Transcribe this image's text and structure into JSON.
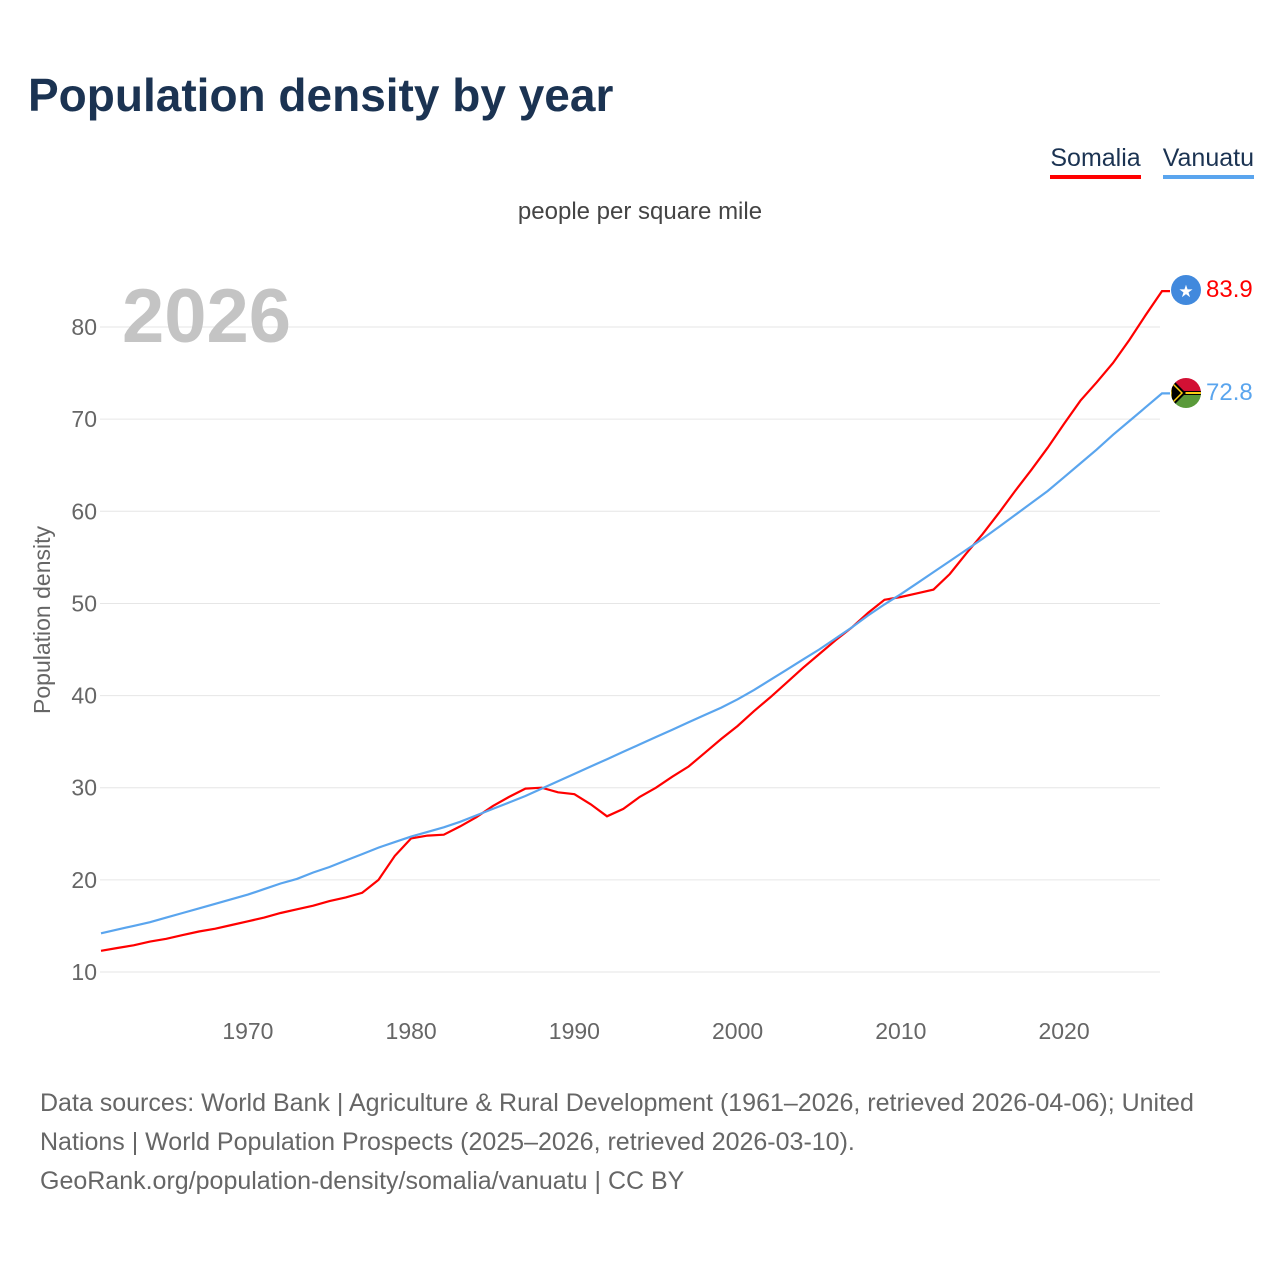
{
  "title": "Population density by year",
  "subtitle": "people per square mile",
  "year_label": "2026",
  "footer": {
    "line1": "Data sources: World Bank | Agriculture & Rural Development (1961–2026, retrieved 2026-04-06); United Nations | World Population Prospects (2025–2026, retrieved 2026-03-10).",
    "line2": "GeoRank.org/population-density/somalia/vanuatu | CC BY"
  },
  "chart_data": {
    "type": "line",
    "title": "Population density by year",
    "subtitle": "people per square mile",
    "xlabel": "",
    "ylabel": "Population density",
    "xlim": [
      1961,
      2026
    ],
    "ylim": [
      10,
      85
    ],
    "grid": true,
    "legend_placement": "top-right",
    "x_ticks": [
      1970,
      1980,
      1990,
      2000,
      2010,
      2020
    ],
    "y_ticks": [
      10,
      20,
      30,
      40,
      50,
      60,
      70,
      80
    ],
    "x": [
      1961,
      1962,
      1963,
      1964,
      1965,
      1966,
      1967,
      1968,
      1969,
      1970,
      1971,
      1972,
      1973,
      1974,
      1975,
      1976,
      1977,
      1978,
      1979,
      1980,
      1981,
      1982,
      1983,
      1984,
      1985,
      1986,
      1987,
      1988,
      1989,
      1990,
      1991,
      1992,
      1993,
      1994,
      1995,
      1996,
      1997,
      1998,
      1999,
      2000,
      2001,
      2002,
      2003,
      2004,
      2005,
      2006,
      2007,
      2008,
      2009,
      2010,
      2011,
      2012,
      2013,
      2014,
      2015,
      2016,
      2017,
      2018,
      2019,
      2020,
      2021,
      2022,
      2023,
      2024,
      2025,
      2026
    ],
    "series": [
      {
        "name": "Somalia",
        "color": "#ff0000",
        "end_label": "83.9",
        "values": [
          12.3,
          12.6,
          12.9,
          13.3,
          13.6,
          14.0,
          14.4,
          14.7,
          15.1,
          15.5,
          15.9,
          16.4,
          16.8,
          17.2,
          17.7,
          18.1,
          18.6,
          20.0,
          22.6,
          24.5,
          24.8,
          24.9,
          25.8,
          26.8,
          28.0,
          29.0,
          29.9,
          30.0,
          29.5,
          29.3,
          28.2,
          26.9,
          27.7,
          29.0,
          30.0,
          31.2,
          32.3,
          33.8,
          35.3,
          36.7,
          38.3,
          39.8,
          41.4,
          43.0,
          44.5,
          46.0,
          47.4,
          49.0,
          50.4,
          50.7,
          51.1,
          51.5,
          53.2,
          55.4,
          57.5,
          59.8,
          62.2,
          64.5,
          66.9,
          69.5,
          72.0,
          74.0,
          76.1,
          78.6,
          81.3,
          83.9
        ]
      },
      {
        "name": "Vanuatu",
        "color": "#5aa5ee",
        "end_label": "72.8",
        "values": [
          14.2,
          14.6,
          15.0,
          15.4,
          15.9,
          16.4,
          16.9,
          17.4,
          17.9,
          18.4,
          19.0,
          19.6,
          20.1,
          20.8,
          21.4,
          22.1,
          22.8,
          23.5,
          24.1,
          24.7,
          25.2,
          25.7,
          26.3,
          27.0,
          27.7,
          28.4,
          29.1,
          29.9,
          30.7,
          31.5,
          32.3,
          33.1,
          33.9,
          34.7,
          35.5,
          36.3,
          37.1,
          37.9,
          38.7,
          39.6,
          40.6,
          41.7,
          42.8,
          43.9,
          45.0,
          46.2,
          47.4,
          48.7,
          49.9,
          51.0,
          52.2,
          53.4,
          54.6,
          55.8,
          57.0,
          58.3,
          59.6,
          60.9,
          62.2,
          63.7,
          65.2,
          66.7,
          68.3,
          69.8,
          71.3,
          72.8
        ]
      }
    ]
  }
}
